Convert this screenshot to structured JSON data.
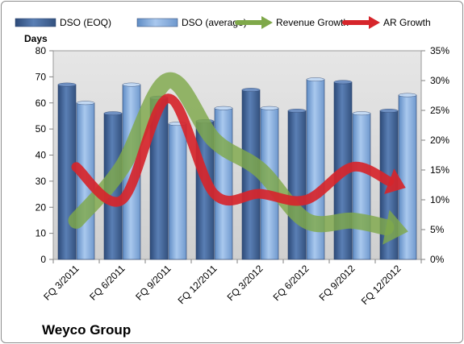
{
  "chart_data": {
    "type": "bar",
    "title": "",
    "company": "Weyco Group",
    "left_axis": {
      "label": "Days",
      "min": 0,
      "max": 80,
      "ticks": [
        "0",
        "10",
        "20",
        "30",
        "40",
        "50",
        "60",
        "70",
        "80"
      ]
    },
    "right_axis": {
      "label": "",
      "min": 0,
      "max": 35,
      "ticks": [
        "0%",
        "5%",
        "10%",
        "15%",
        "20%",
        "25%",
        "30%",
        "35%"
      ]
    },
    "categories": [
      "FQ 3/2011",
      "FQ 6/2011",
      "FQ 9/2011",
      "FQ 12/2011",
      "FQ 3/2012",
      "FQ 6/2012",
      "FQ 9/2012",
      "FQ 12/2012"
    ],
    "series": [
      {
        "name": "DSO (EOQ)",
        "kind": "bar",
        "axis": "left",
        "color": "#4a6fa5",
        "values": [
          67,
          56,
          62,
          53,
          65,
          57,
          68,
          57
        ]
      },
      {
        "name": "DSO (average)",
        "kind": "bar",
        "axis": "left",
        "color": "#8fb4e3",
        "values": [
          60,
          67,
          52,
          58,
          58,
          69,
          56,
          63
        ]
      },
      {
        "name": "Revenue Growth",
        "kind": "arrow",
        "axis": "right",
        "color": "#7fa84a",
        "values": [
          6.5,
          15.5,
          30,
          20,
          15,
          6.5,
          6.5,
          5
        ]
      },
      {
        "name": "AR Growth",
        "kind": "arrow",
        "axis": "right",
        "color": "#d6252b",
        "values": [
          15.5,
          10,
          27,
          11,
          11,
          10,
          15.5,
          12.5
        ]
      }
    ],
    "grid": false,
    "legend_position": "top"
  }
}
